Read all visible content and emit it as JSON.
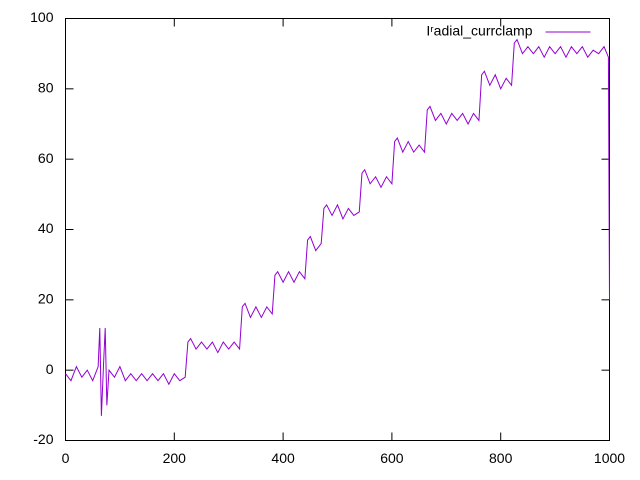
{
  "chart_data": {
    "type": "line",
    "x": [
      0,
      10,
      20,
      30,
      40,
      50,
      60,
      63,
      66,
      70,
      73,
      76,
      80,
      90,
      100,
      110,
      120,
      130,
      140,
      150,
      160,
      170,
      180,
      190,
      200,
      210,
      220,
      225,
      230,
      240,
      250,
      260,
      270,
      280,
      290,
      300,
      310,
      320,
      325,
      330,
      340,
      350,
      360,
      370,
      380,
      385,
      390,
      400,
      410,
      420,
      430,
      440,
      445,
      450,
      460,
      470,
      475,
      480,
      490,
      500,
      510,
      520,
      530,
      540,
      545,
      550,
      560,
      570,
      580,
      590,
      600,
      605,
      610,
      620,
      630,
      640,
      650,
      660,
      665,
      670,
      680,
      690,
      700,
      710,
      720,
      730,
      740,
      750,
      760,
      765,
      770,
      780,
      790,
      800,
      810,
      820,
      825,
      830,
      840,
      850,
      860,
      870,
      880,
      890,
      900,
      910,
      920,
      930,
      940,
      950,
      960,
      970,
      980,
      990,
      998,
      1000
    ],
    "series": [
      {
        "name": "Iʳadial_currclamp",
        "color": "#9400d3",
        "values": [
          -1,
          -3,
          1,
          -2,
          0,
          -3,
          1,
          12,
          -13,
          2,
          12,
          -10,
          0,
          -2,
          1,
          -3,
          -1,
          -3,
          -1,
          -3,
          -1,
          -3,
          -1,
          -4,
          -1,
          -3,
          -2,
          8,
          9,
          6,
          8,
          6,
          8,
          5,
          8,
          6,
          8,
          6,
          18,
          19,
          15,
          18,
          15,
          18,
          16,
          27,
          28,
          25,
          28,
          25,
          28,
          26,
          37,
          38,
          34,
          36,
          46,
          47,
          44,
          47,
          43,
          46,
          44,
          45,
          56,
          57,
          53,
          55,
          52,
          55,
          53,
          65,
          66,
          62,
          65,
          62,
          64,
          62,
          74,
          75,
          71,
          73,
          70,
          73,
          71,
          73,
          70,
          73,
          71,
          84,
          85,
          81,
          84,
          80,
          83,
          81,
          93,
          94,
          90,
          92,
          90,
          92,
          89,
          92,
          90,
          92,
          89,
          92,
          90,
          92,
          89,
          91,
          90,
          92,
          89,
          20
        ]
      }
    ],
    "xlim": [
      0,
      1000
    ],
    "xticks": [
      0,
      200,
      400,
      600,
      800,
      1000
    ],
    "ylim": [
      -20,
      100
    ],
    "yticks": [
      -20,
      0,
      20,
      40,
      60,
      80,
      100
    ],
    "grid": false,
    "legend": "top-right"
  }
}
